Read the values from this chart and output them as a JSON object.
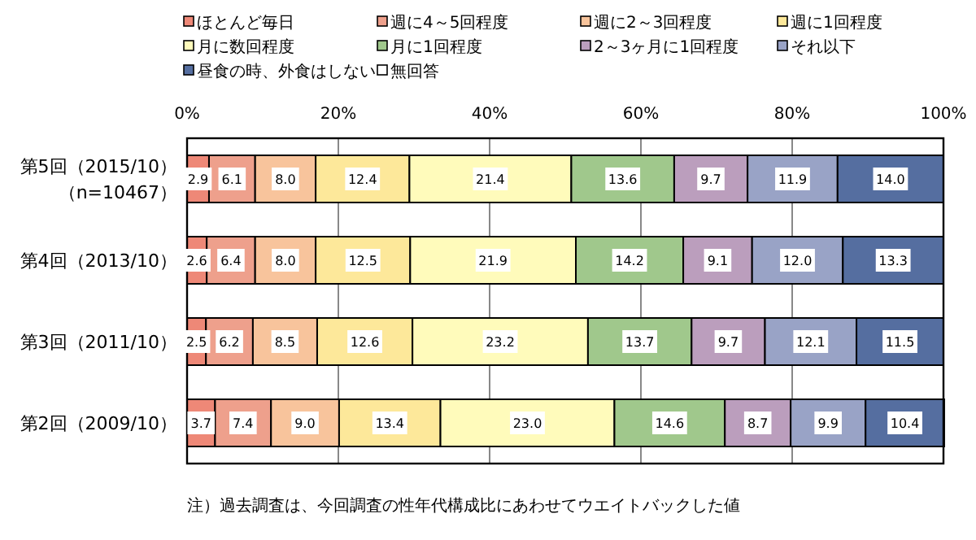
{
  "chart_data": {
    "type": "bar",
    "orientation": "horizontal",
    "stacked": true,
    "legend": "top",
    "grid": "x",
    "categories": [
      "第5回（2015/10）（n=10467）",
      "第4回（2013/10）",
      "第3回（2011/10）",
      "第2回（2009/10）"
    ],
    "xlim": [
      0,
      100
    ],
    "xticks": [
      {
        "value": 0,
        "label": "0%"
      },
      {
        "value": 20,
        "label": "20%"
      },
      {
        "value": 40,
        "label": "40%"
      },
      {
        "value": 60,
        "label": "60%"
      },
      {
        "value": 80,
        "label": "80%"
      },
      {
        "value": 100,
        "label": "100%"
      }
    ],
    "series": [
      {
        "name": "ほとんど毎日",
        "color": "#ee8877",
        "values": [
          2.9,
          2.6,
          2.5,
          3.7
        ],
        "value_labels": [
          "2.9",
          "2.6",
          "2.5",
          "3.7"
        ]
      },
      {
        "name": "週に4～5回程度",
        "color": "#eea08c",
        "values": [
          6.1,
          6.4,
          6.2,
          7.4
        ],
        "value_labels": [
          "6.1",
          "6.4",
          "6.2",
          "7.4"
        ]
      },
      {
        "name": "週に2～3回程度",
        "color": "#f8c49c",
        "values": [
          8.0,
          8.0,
          8.5,
          9.0
        ],
        "value_labels": [
          "8.0",
          "8.0",
          "8.5",
          "9.0"
        ]
      },
      {
        "name": "週に1回程度",
        "color": "#fde89a",
        "values": [
          12.4,
          12.5,
          12.6,
          13.4
        ],
        "value_labels": [
          "12.4",
          "12.5",
          "12.6",
          "13.4"
        ]
      },
      {
        "name": "月に数回程度",
        "color": "#fffbbb",
        "values": [
          21.4,
          21.9,
          23.2,
          23.0
        ],
        "value_labels": [
          "21.4",
          "21.9",
          "23.2",
          "23.0"
        ]
      },
      {
        "name": "月に1回程度",
        "color": "#a0c88c",
        "values": [
          13.6,
          14.2,
          13.7,
          14.6
        ],
        "value_labels": [
          "13.6",
          "14.2",
          "13.7",
          "14.6"
        ]
      },
      {
        "name": "2～3ヶ月に1回程度",
        "color": "#bb9ebd",
        "values": [
          9.7,
          9.1,
          9.7,
          8.7
        ],
        "value_labels": [
          "9.7",
          "9.1",
          "9.7",
          "8.7"
        ]
      },
      {
        "name": "それ以下",
        "color": "#99a3c6",
        "values": [
          11.9,
          12.0,
          12.1,
          9.9
        ],
        "value_labels": [
          "11.9",
          "12.0",
          "12.1",
          "9.9"
        ]
      },
      {
        "name": "昼食の時、外食はしない",
        "color": "#556ea0",
        "values": [
          14.0,
          13.3,
          11.5,
          10.4
        ],
        "value_labels": [
          "14.0",
          "13.3",
          "11.5",
          "10.4"
        ]
      },
      {
        "name": "無回答",
        "color": "#ffffff",
        "values": [
          null,
          null,
          null,
          null
        ]
      }
    ],
    "annotations": [
      "注）過去調査は、今回調査の性年代構成比にあわせてウエイトバックした値"
    ]
  }
}
